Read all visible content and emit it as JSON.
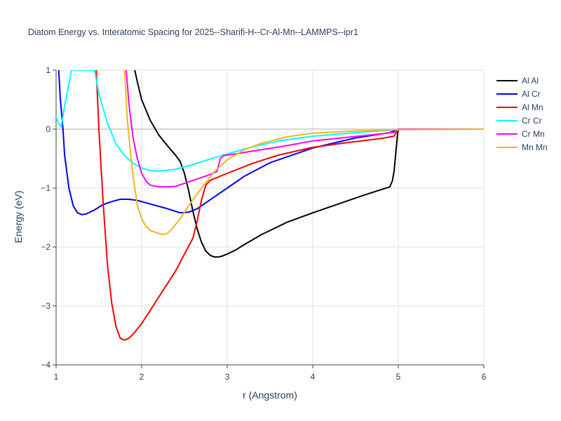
{
  "chart_data": {
    "type": "line",
    "title": "Diatom Energy vs. Interatomic Spacing for 2025--Sharifi-H--Cr-Al-Mn--LAMMPS--ipr1",
    "xlabel": "r (Angstrom)",
    "ylabel": "Energy (eV)",
    "xlim": [
      1,
      6
    ],
    "ylim": [
      -4,
      1
    ],
    "x_ticks": [
      1,
      2,
      3,
      4,
      5,
      6
    ],
    "y_ticks": [
      1,
      0,
      -1,
      -2,
      -3,
      -4
    ],
    "x_tick_labels": [
      "1",
      "2",
      "3",
      "4",
      "5",
      "6"
    ],
    "y_tick_labels": [
      "1",
      "0",
      "−1",
      "−2",
      "−3",
      "−4"
    ],
    "grid": true,
    "legend_position": "top-right",
    "series": [
      {
        "name": "Al Al",
        "color": "#000000",
        "points": [
          [
            1.92,
            1.0
          ],
          [
            1.95,
            0.8
          ],
          [
            2.0,
            0.5
          ],
          [
            2.1,
            0.15
          ],
          [
            2.2,
            -0.1
          ],
          [
            2.3,
            -0.28
          ],
          [
            2.4,
            -0.45
          ],
          [
            2.45,
            -0.55
          ],
          [
            2.5,
            -0.75
          ],
          [
            2.55,
            -1.05
          ],
          [
            2.6,
            -1.4
          ],
          [
            2.65,
            -1.7
          ],
          [
            2.7,
            -1.92
          ],
          [
            2.75,
            -2.07
          ],
          [
            2.8,
            -2.14
          ],
          [
            2.85,
            -2.17
          ],
          [
            2.9,
            -2.17
          ],
          [
            2.95,
            -2.15
          ],
          [
            3.0,
            -2.12
          ],
          [
            3.1,
            -2.05
          ],
          [
            3.2,
            -1.96
          ],
          [
            3.4,
            -1.79
          ],
          [
            3.7,
            -1.58
          ],
          [
            4.0,
            -1.42
          ],
          [
            4.3,
            -1.27
          ],
          [
            4.6,
            -1.12
          ],
          [
            4.9,
            -0.98
          ],
          [
            4.93,
            -0.88
          ],
          [
            4.95,
            -0.72
          ],
          [
            4.97,
            -0.42
          ],
          [
            4.99,
            -0.1
          ],
          [
            5.0,
            0.0
          ],
          [
            6.0,
            0.0
          ]
        ]
      },
      {
        "name": "Al Cr",
        "color": "#0000ff",
        "points": [
          [
            1.03,
            1.0
          ],
          [
            1.05,
            0.5
          ],
          [
            1.08,
            0.0
          ],
          [
            1.1,
            -0.45
          ],
          [
            1.15,
            -1.0
          ],
          [
            1.2,
            -1.3
          ],
          [
            1.25,
            -1.42
          ],
          [
            1.3,
            -1.45
          ],
          [
            1.35,
            -1.44
          ],
          [
            1.45,
            -1.37
          ],
          [
            1.55,
            -1.28
          ],
          [
            1.65,
            -1.23
          ],
          [
            1.75,
            -1.19
          ],
          [
            1.85,
            -1.19
          ],
          [
            1.95,
            -1.21
          ],
          [
            2.1,
            -1.27
          ],
          [
            2.3,
            -1.35
          ],
          [
            2.45,
            -1.42
          ],
          [
            2.55,
            -1.41
          ],
          [
            2.65,
            -1.35
          ],
          [
            2.8,
            -1.2
          ],
          [
            3.0,
            -1.0
          ],
          [
            3.2,
            -0.8
          ],
          [
            3.5,
            -0.57
          ],
          [
            4.0,
            -0.32
          ],
          [
            4.5,
            -0.15
          ],
          [
            4.9,
            -0.06
          ],
          [
            5.0,
            0.0
          ],
          [
            6.0,
            0.0
          ]
        ]
      },
      {
        "name": "Al Mn",
        "color": "#ff0000",
        "points": [
          [
            1.47,
            1.0
          ],
          [
            1.5,
            0.0
          ],
          [
            1.55,
            -1.25
          ],
          [
            1.6,
            -2.3
          ],
          [
            1.65,
            -2.95
          ],
          [
            1.7,
            -3.35
          ],
          [
            1.75,
            -3.55
          ],
          [
            1.8,
            -3.58
          ],
          [
            1.85,
            -3.55
          ],
          [
            1.9,
            -3.48
          ],
          [
            2.0,
            -3.3
          ],
          [
            2.2,
            -2.85
          ],
          [
            2.4,
            -2.4
          ],
          [
            2.5,
            -2.12
          ],
          [
            2.6,
            -1.85
          ],
          [
            2.65,
            -1.55
          ],
          [
            2.7,
            -1.2
          ],
          [
            2.75,
            -0.95
          ],
          [
            2.8,
            -0.87
          ],
          [
            3.0,
            -0.75
          ],
          [
            3.3,
            -0.58
          ],
          [
            3.6,
            -0.44
          ],
          [
            4.0,
            -0.31
          ],
          [
            4.4,
            -0.23
          ],
          [
            4.8,
            -0.16
          ],
          [
            4.95,
            -0.12
          ],
          [
            5.0,
            0.0
          ],
          [
            6.0,
            0.0
          ]
        ]
      },
      {
        "name": "Cr Cr",
        "color": "#00ffff",
        "points": [
          [
            1.0,
            0.2
          ],
          [
            1.03,
            0.1
          ],
          [
            1.06,
            0.04
          ],
          [
            1.1,
            0.4
          ],
          [
            1.18,
            1.0
          ],
          [
            1.45,
            1.0
          ],
          [
            1.5,
            0.6
          ],
          [
            1.6,
            0.1
          ],
          [
            1.7,
            -0.25
          ],
          [
            1.8,
            -0.45
          ],
          [
            1.9,
            -0.58
          ],
          [
            2.0,
            -0.66
          ],
          [
            2.1,
            -0.7
          ],
          [
            2.2,
            -0.71
          ],
          [
            2.3,
            -0.7
          ],
          [
            2.4,
            -0.68
          ],
          [
            2.6,
            -0.6
          ],
          [
            2.8,
            -0.51
          ],
          [
            3.0,
            -0.42
          ],
          [
            3.3,
            -0.3
          ],
          [
            3.6,
            -0.2
          ],
          [
            4.0,
            -0.12
          ],
          [
            4.5,
            -0.06
          ],
          [
            5.0,
            -0.01
          ],
          [
            6.0,
            0.0
          ]
        ]
      },
      {
        "name": "Cr Mn",
        "color": "#ff00ff",
        "points": [
          [
            1.82,
            1.0
          ],
          [
            1.85,
            0.45
          ],
          [
            1.9,
            -0.15
          ],
          [
            1.95,
            -0.5
          ],
          [
            2.0,
            -0.75
          ],
          [
            2.05,
            -0.88
          ],
          [
            2.1,
            -0.95
          ],
          [
            2.2,
            -0.98
          ],
          [
            2.3,
            -0.98
          ],
          [
            2.4,
            -0.97
          ],
          [
            2.5,
            -0.92
          ],
          [
            2.6,
            -0.87
          ],
          [
            2.7,
            -0.82
          ],
          [
            2.8,
            -0.77
          ],
          [
            2.88,
            -0.72
          ],
          [
            2.92,
            -0.5
          ],
          [
            2.96,
            -0.45
          ],
          [
            3.1,
            -0.42
          ],
          [
            3.4,
            -0.35
          ],
          [
            3.7,
            -0.28
          ],
          [
            4.0,
            -0.2
          ],
          [
            4.4,
            -0.14
          ],
          [
            4.8,
            -0.08
          ],
          [
            4.97,
            -0.05
          ],
          [
            5.0,
            0.0
          ],
          [
            6.0,
            0.0
          ]
        ]
      },
      {
        "name": "Mn Mn",
        "color": "#ecb91d",
        "points": [
          [
            1.8,
            1.0
          ],
          [
            1.83,
            0.2
          ],
          [
            1.87,
            -0.4
          ],
          [
            1.9,
            -0.8
          ],
          [
            1.95,
            -1.3
          ],
          [
            2.0,
            -1.52
          ],
          [
            2.05,
            -1.65
          ],
          [
            2.1,
            -1.72
          ],
          [
            2.2,
            -1.77
          ],
          [
            2.25,
            -1.79
          ],
          [
            2.3,
            -1.77
          ],
          [
            2.35,
            -1.7
          ],
          [
            2.45,
            -1.52
          ],
          [
            2.55,
            -1.3
          ],
          [
            2.7,
            -1.0
          ],
          [
            2.85,
            -0.72
          ],
          [
            3.0,
            -0.52
          ],
          [
            3.2,
            -0.35
          ],
          [
            3.4,
            -0.24
          ],
          [
            3.7,
            -0.13
          ],
          [
            4.0,
            -0.07
          ],
          [
            4.5,
            -0.03
          ],
          [
            5.0,
            -0.01
          ],
          [
            6.0,
            0.0
          ]
        ]
      }
    ]
  }
}
